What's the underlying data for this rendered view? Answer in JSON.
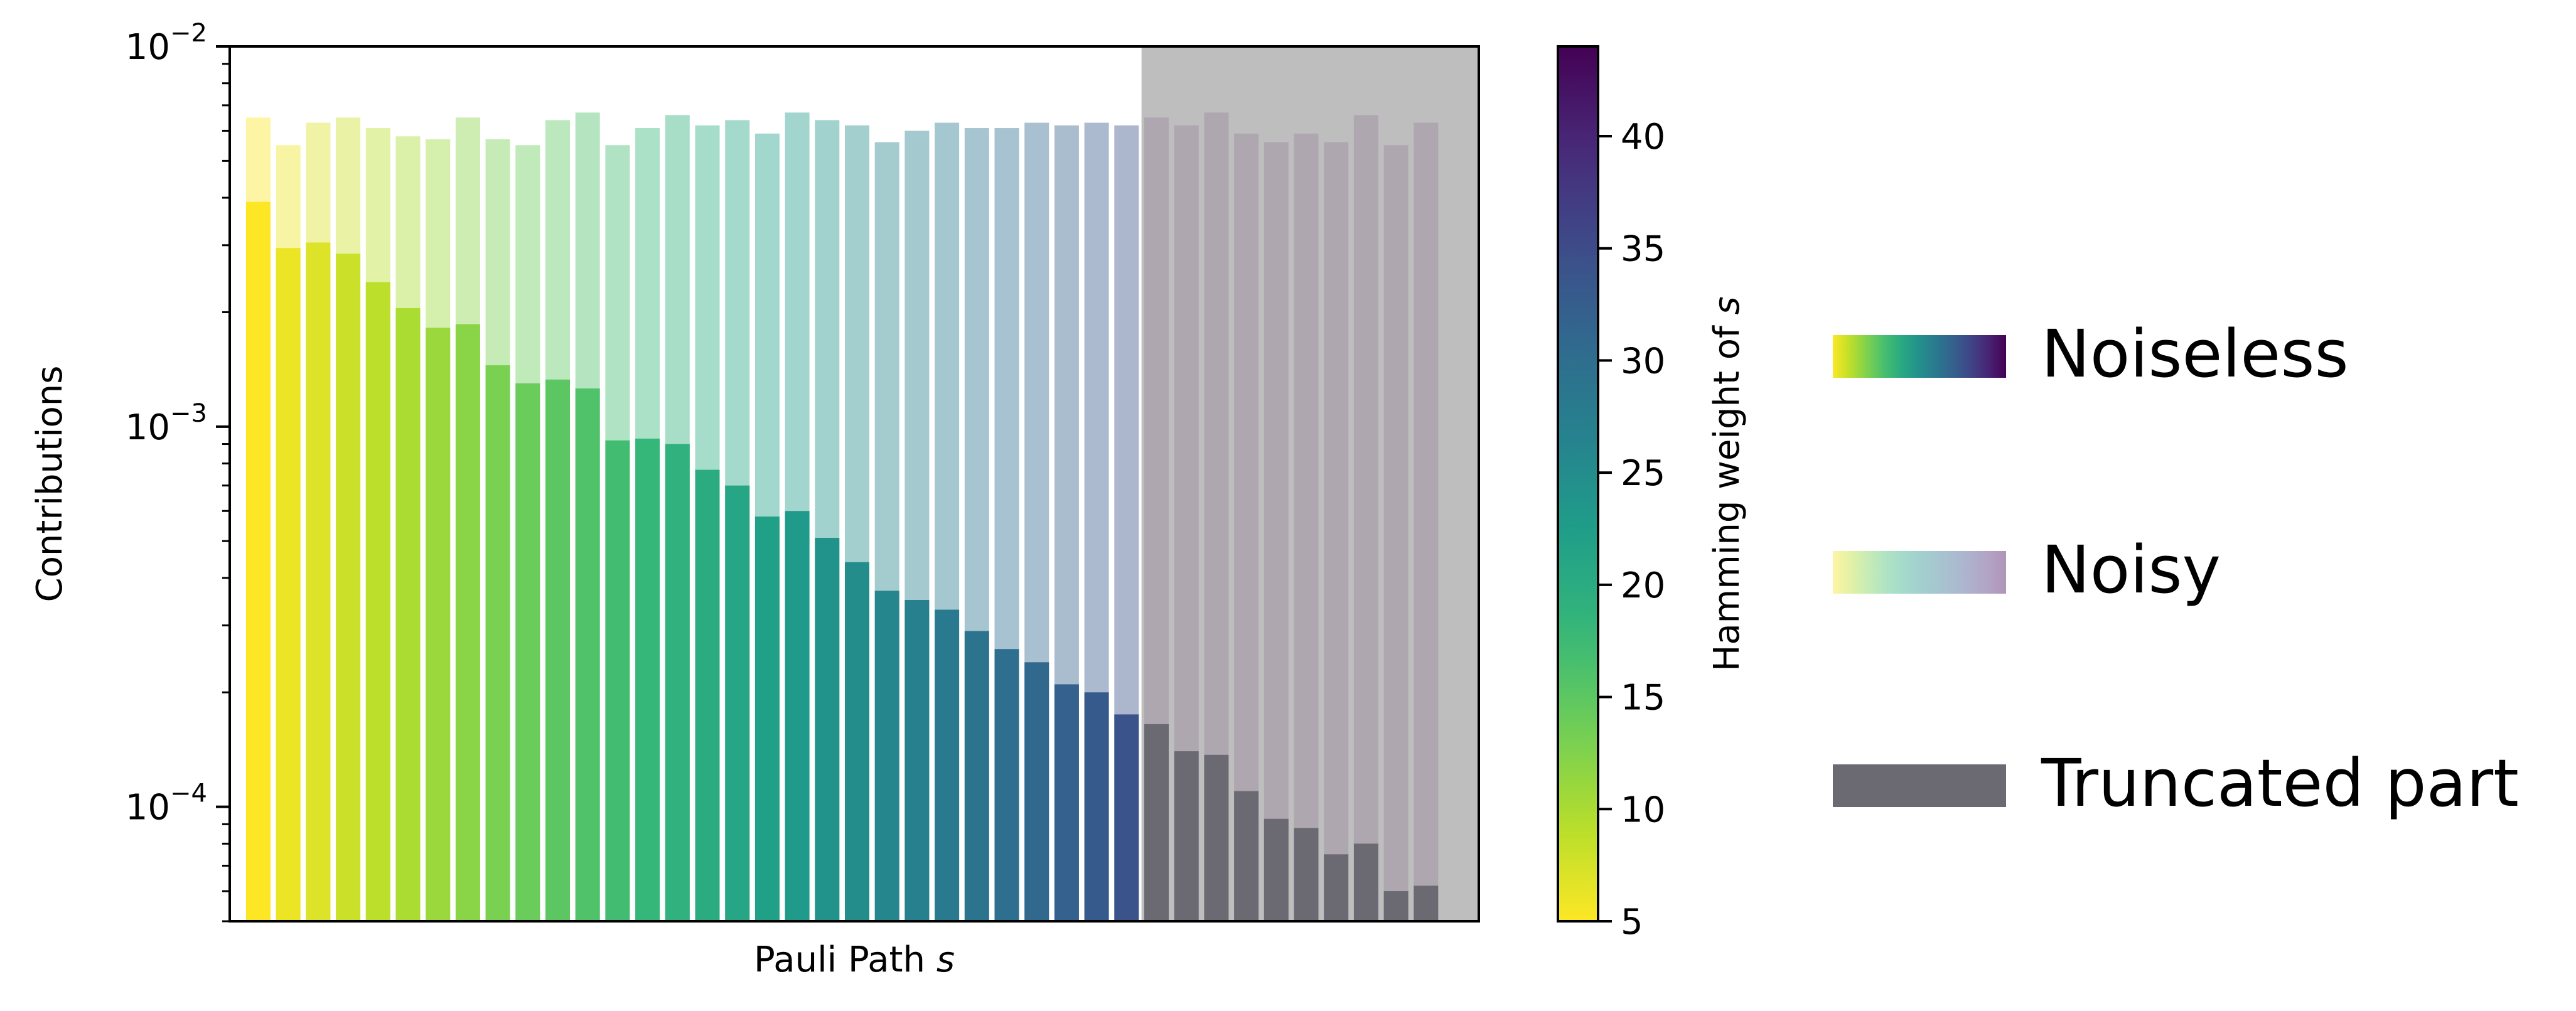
{
  "chart_data": {
    "type": "bar",
    "title": "",
    "xlabel": "Pauli Path s",
    "ylabel": "Contributions",
    "yscale": "log",
    "ylim": [
      5e-05,
      0.01
    ],
    "y_ticks": [
      {
        "value": 0.01,
        "base": "10",
        "exp": "−2"
      },
      {
        "value": 0.001,
        "base": "10",
        "exp": "−3"
      },
      {
        "value": 0.0001,
        "base": "10",
        "exp": "−4"
      }
    ],
    "grid": false,
    "truncation_start_index": 30,
    "series": [
      {
        "name": "Noiseless",
        "values": [
          0.0039,
          0.00295,
          0.00305,
          0.00285,
          0.0024,
          0.00205,
          0.00182,
          0.00186,
          0.00145,
          0.0013,
          0.00133,
          0.00126,
          0.00092,
          0.00093,
          0.0009,
          0.00077,
          0.0007,
          0.00058,
          0.0006,
          0.00051,
          0.00044,
          0.00037,
          0.00035,
          0.00033,
          0.00029,
          0.00026,
          0.00024,
          0.00021,
          0.0002,
          0.000175,
          0.000165,
          0.00014,
          0.000137,
          0.00011,
          9.3e-05,
          8.8e-05,
          7.5e-05,
          8e-05,
          6e-05,
          6.2e-05
        ]
      },
      {
        "name": "Noisy",
        "values": [
          0.0065,
          0.0055,
          0.0063,
          0.0065,
          0.0061,
          0.0058,
          0.0057,
          0.0065,
          0.0057,
          0.0055,
          0.0064,
          0.0067,
          0.0055,
          0.0061,
          0.0066,
          0.0062,
          0.0064,
          0.0059,
          0.0067,
          0.0064,
          0.0062,
          0.0056,
          0.006,
          0.0063,
          0.0061,
          0.0061,
          0.0063,
          0.0062,
          0.0063,
          0.0062,
          0.0065,
          0.0062,
          0.0067,
          0.0059,
          0.0056,
          0.0059,
          0.0056,
          0.0066,
          0.0055,
          0.0063
        ]
      }
    ],
    "hamming_weight": [
      5,
      6,
      7,
      8,
      9,
      10,
      11,
      12,
      13,
      14,
      15,
      16,
      17,
      18,
      19,
      20,
      21,
      22,
      23,
      24,
      25,
      26,
      27,
      28,
      29,
      30,
      31,
      32,
      33,
      34,
      35,
      36,
      37,
      38,
      39,
      40,
      41,
      42,
      43,
      44
    ],
    "colorbar": {
      "label": "Hamming weight of s",
      "range": [
        5,
        44
      ],
      "ticks": [
        "5",
        "10",
        "15",
        "20",
        "25",
        "30",
        "35",
        "40"
      ],
      "colormap": "viridis-reversed"
    },
    "legend": {
      "placement": "right",
      "entries": [
        {
          "label": "Noiseless",
          "style": "gradient-solid"
        },
        {
          "label": "Noisy",
          "style": "gradient-faded"
        },
        {
          "label": "Truncated part",
          "style": "solid",
          "color": "#6b6a73"
        }
      ]
    },
    "colors": {
      "truncated_shade": "#bebebe",
      "truncated_bar": "#6b6a73",
      "truncated_bar_noisy": "#a89fa9"
    }
  }
}
